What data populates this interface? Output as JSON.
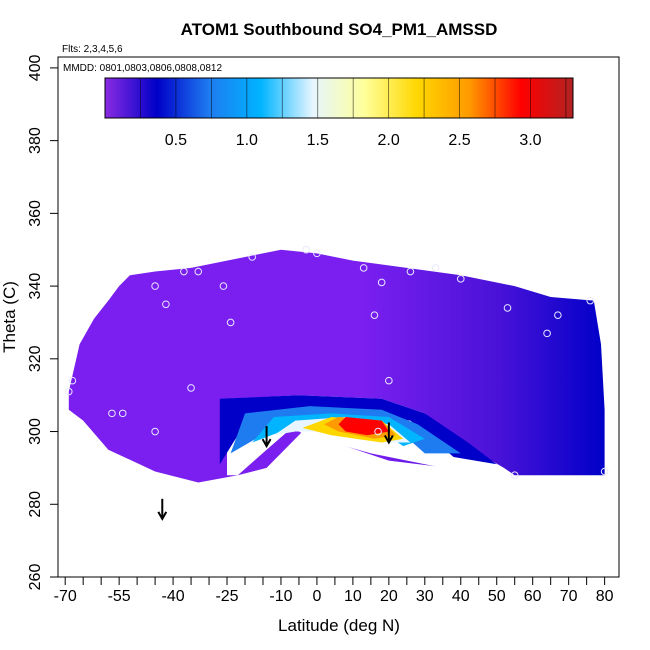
{
  "chart_data": {
    "type": "heatmap",
    "title": "ATOM1 Southbound SO4_PM1_AMSSD",
    "annotations": {
      "flights": "Flts: 2,3,4,5,6",
      "dates": "MMDD: 0801,0803,0806,0808,0812"
    },
    "xlabel": "Latitude (deg N)",
    "ylabel": "Theta (C)",
    "xlim": [
      -72,
      84
    ],
    "ylim": [
      260,
      403
    ],
    "x_ticks_labeled": [
      -70,
      -55,
      -40,
      -25,
      -10,
      0,
      10,
      20,
      30,
      40,
      50,
      60,
      70,
      80
    ],
    "x_ticks_minor": [
      -65,
      -60,
      -50,
      -45,
      -35,
      -30,
      -20,
      -15,
      -5,
      5,
      15,
      25,
      35,
      45,
      55,
      65,
      75
    ],
    "y_ticks": [
      260,
      280,
      300,
      320,
      340,
      360,
      380,
      400
    ],
    "colorbar": {
      "ticks": [
        0.5,
        1.0,
        1.5,
        2.0,
        2.5,
        3.0
      ],
      "tick_labels": [
        "0.5",
        "1.0",
        "1.5",
        "2.0",
        "2.5",
        "3.0"
      ],
      "range": [
        0,
        3.3
      ]
    },
    "colors": {
      "c0": "#8a2be2",
      "c1": "#0000c8",
      "c2": "#1e7bf0",
      "c3": "#00b4ff",
      "c4": "#e6f5ff",
      "c5": "#ffff99",
      "c6": "#ffd700",
      "c7": "#ff9a00",
      "c8": "#ff0000",
      "c9": "#b22222",
      "field": "#7a1ff0"
    },
    "field_outline": [
      [
        -69,
        311
      ],
      [
        -66,
        324
      ],
      [
        -62,
        331
      ],
      [
        -58,
        336
      ],
      [
        -55,
        340
      ],
      [
        -52,
        343
      ],
      [
        -45,
        344
      ],
      [
        -35,
        345
      ],
      [
        -25,
        347
      ],
      [
        -10,
        350
      ],
      [
        0,
        349
      ],
      [
        10,
        347
      ],
      [
        25,
        345
      ],
      [
        40,
        343
      ],
      [
        55,
        340
      ],
      [
        65,
        337
      ],
      [
        77,
        336
      ],
      [
        79,
        324
      ],
      [
        80,
        306
      ],
      [
        80,
        288
      ],
      [
        55,
        288
      ],
      [
        45,
        289
      ],
      [
        20,
        292
      ],
      [
        5,
        297
      ],
      [
        -4,
        300
      ],
      [
        -14,
        290
      ],
      [
        -22,
        288
      ],
      [
        -33,
        286
      ],
      [
        -45,
        289
      ],
      [
        -58,
        295
      ],
      [
        -65,
        303
      ],
      [
        -69,
        306
      ]
    ],
    "hole_outline": [
      [
        -25,
        288
      ],
      [
        -22,
        288
      ],
      [
        -14,
        295
      ],
      [
        -7,
        301
      ],
      [
        -3,
        299
      ],
      [
        15,
        294
      ],
      [
        40,
        289
      ],
      [
        55,
        288
      ],
      [
        52,
        290
      ],
      [
        40,
        297
      ],
      [
        30,
        305
      ],
      [
        18,
        309
      ],
      [
        -5,
        310
      ],
      [
        -25,
        309
      ]
    ],
    "bands": [
      {
        "name": "dark-blue",
        "color_key": "c1",
        "points": [
          [
            -27,
            291
          ],
          [
            -27,
            309
          ],
          [
            -5,
            310
          ],
          [
            18,
            309
          ],
          [
            30,
            305
          ],
          [
            42,
            297
          ],
          [
            50,
            291
          ],
          [
            38,
            293
          ],
          [
            26,
            303
          ],
          [
            10,
            305
          ],
          [
            -10,
            304
          ],
          [
            -22,
            299
          ]
        ]
      },
      {
        "name": "blue",
        "color_key": "c2",
        "points": [
          [
            -24,
            294
          ],
          [
            -20,
            305
          ],
          [
            -2,
            307
          ],
          [
            18,
            306
          ],
          [
            28,
            302
          ],
          [
            40,
            294
          ],
          [
            30,
            294
          ],
          [
            22,
            301
          ],
          [
            8,
            303
          ],
          [
            -10,
            302
          ]
        ]
      },
      {
        "name": "light-blue",
        "color_key": "c3",
        "points": [
          [
            -18,
            297
          ],
          [
            -12,
            304
          ],
          [
            4,
            305
          ],
          [
            20,
            304
          ],
          [
            30,
            298
          ],
          [
            24,
            296
          ],
          [
            18,
            300
          ],
          [
            2,
            302
          ],
          [
            -10,
            300
          ]
        ]
      },
      {
        "name": "white",
        "color_key": "c4",
        "points": [
          [
            -12,
            299
          ],
          [
            -6,
            303
          ],
          [
            8,
            304
          ],
          [
            20,
            302
          ],
          [
            26,
            297
          ],
          [
            18,
            297
          ],
          [
            4,
            300
          ],
          [
            -6,
            300
          ]
        ]
      },
      {
        "name": "yellow",
        "color_key": "c6",
        "points": [
          [
            -4,
            301
          ],
          [
            4,
            304
          ],
          [
            18,
            303
          ],
          [
            24,
            298
          ],
          [
            18,
            297
          ],
          [
            4,
            299
          ]
        ]
      },
      {
        "name": "orange",
        "color_key": "c7",
        "points": [
          [
            2,
            302
          ],
          [
            6,
            304
          ],
          [
            18,
            303
          ],
          [
            22,
            299
          ],
          [
            16,
            298
          ],
          [
            6,
            300
          ]
        ]
      },
      {
        "name": "red",
        "color_key": "c8",
        "points": [
          [
            6,
            302
          ],
          [
            8,
            304
          ],
          [
            18,
            303
          ],
          [
            20,
            300
          ],
          [
            14,
            299
          ],
          [
            8,
            300
          ]
        ]
      }
    ],
    "sample_points": [
      [
        -68,
        314
      ],
      [
        -69,
        311
      ],
      [
        -57,
        305
      ],
      [
        -54,
        305
      ],
      [
        -45,
        300
      ],
      [
        -42,
        335
      ],
      [
        -45,
        340
      ],
      [
        -37,
        344
      ],
      [
        -33,
        344
      ],
      [
        -35,
        312
      ],
      [
        -26,
        340
      ],
      [
        -24,
        330
      ],
      [
        -18,
        348
      ],
      [
        -3,
        350
      ],
      [
        0,
        349
      ],
      [
        13,
        345
      ],
      [
        18,
        341
      ],
      [
        26,
        344
      ],
      [
        33,
        345
      ],
      [
        40,
        342
      ],
      [
        53,
        334
      ],
      [
        64,
        327
      ],
      [
        67,
        332
      ],
      [
        76,
        336
      ],
      [
        80,
        289
      ],
      [
        55,
        288
      ],
      [
        16,
        332
      ],
      [
        20,
        314
      ],
      [
        17,
        300
      ]
    ],
    "arrows": [
      [
        -43,
        276
      ],
      [
        -14,
        296
      ],
      [
        20,
        297
      ]
    ]
  }
}
